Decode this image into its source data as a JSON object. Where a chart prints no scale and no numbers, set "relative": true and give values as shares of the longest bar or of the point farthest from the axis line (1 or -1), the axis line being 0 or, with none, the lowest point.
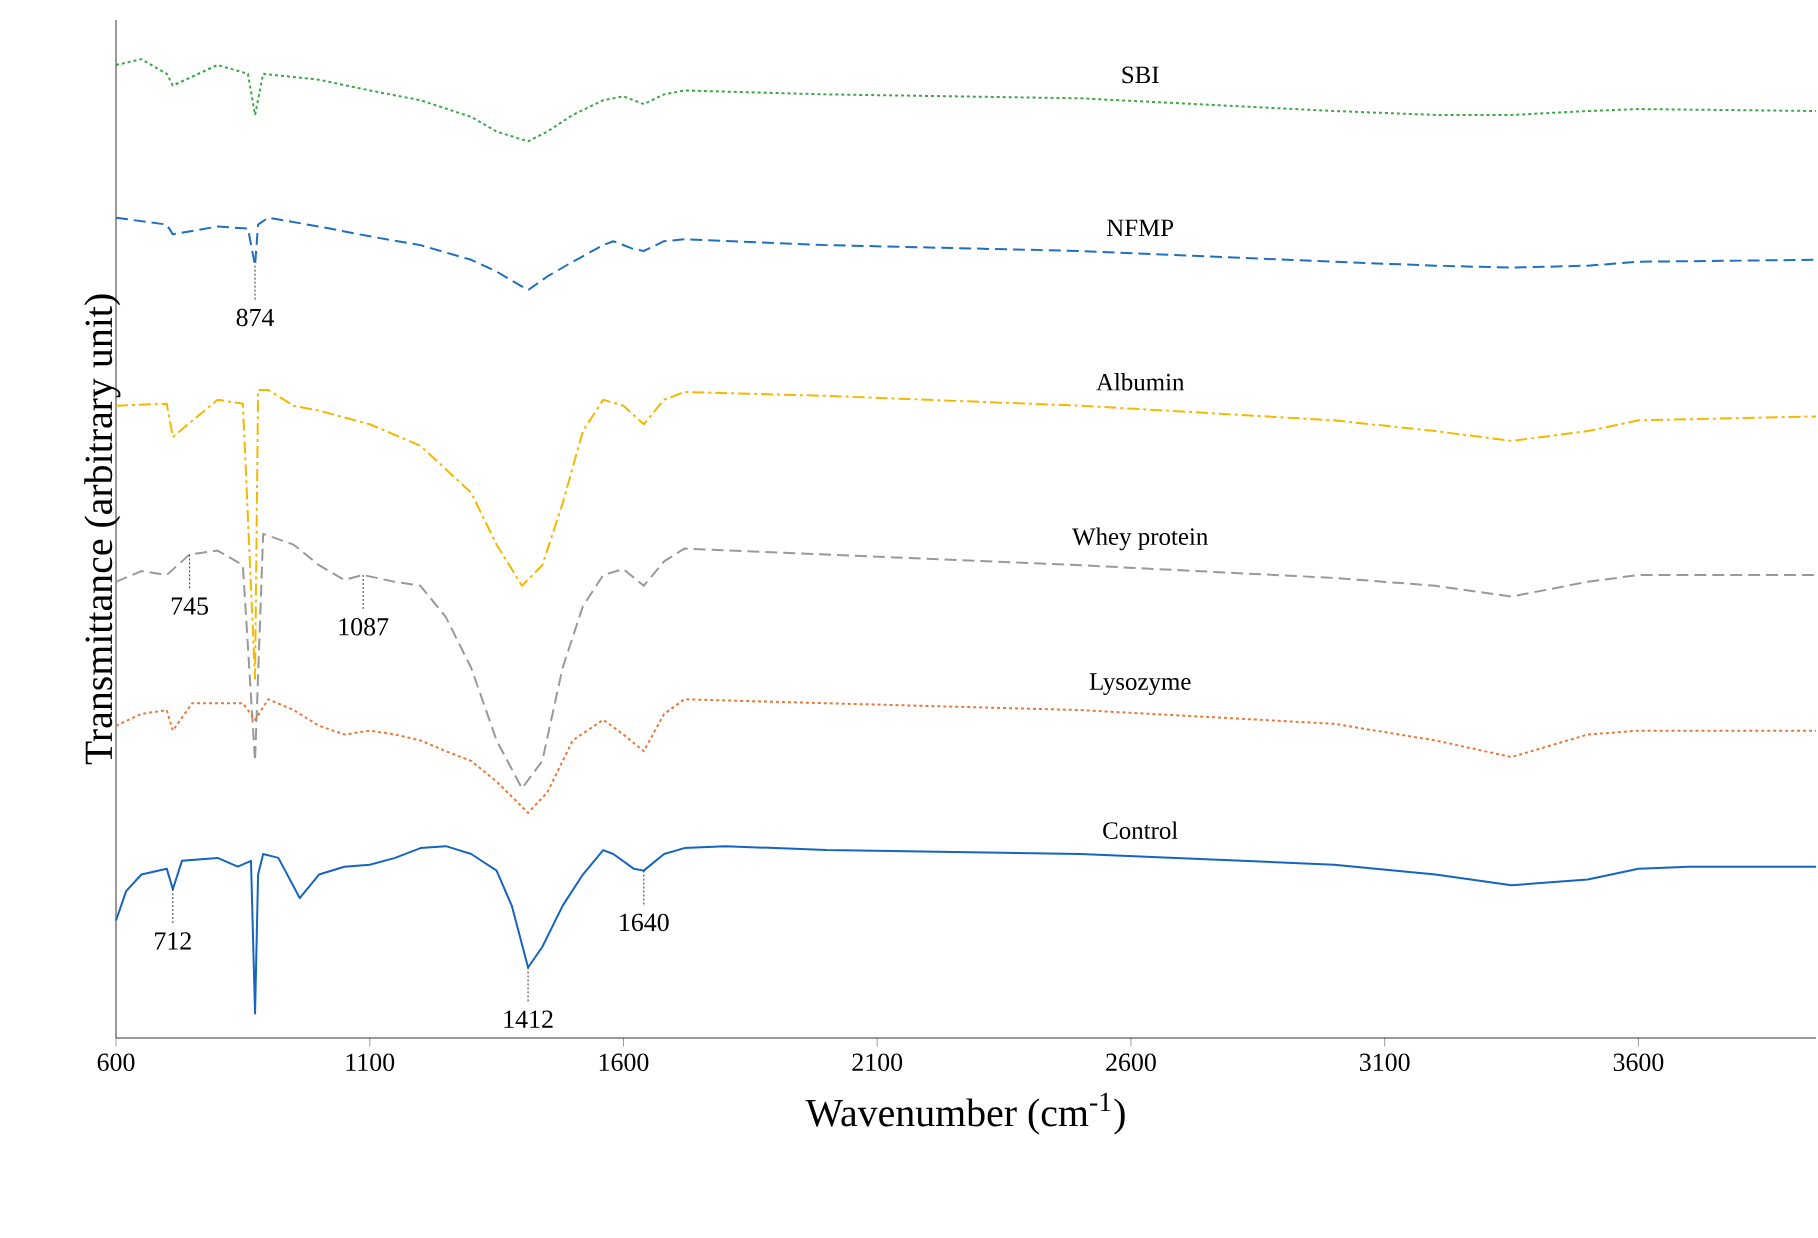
{
  "chart_data": {
    "type": "line",
    "xlabel": "Wavenumber (cm$^{-1}$)",
    "ylabel": "Transmittance (arbitrary unit)",
    "relative": true,
    "xlim": [
      600,
      3950
    ],
    "xticks": [
      600,
      1100,
      1600,
      2100,
      2600,
      3100,
      3600
    ],
    "series": [
      {
        "name": "SBI",
        "color": "#3aa845",
        "line_style": "dotted",
        "x": [
          600,
          650,
          700,
          712,
          800,
          860,
          874,
          890,
          1000,
          1100,
          1200,
          1300,
          1350,
          1412,
          1450,
          1500,
          1560,
          1600,
          1640,
          1680,
          1720,
          2000,
          2500,
          3000,
          3200,
          3350,
          3500,
          3600,
          3950
        ],
        "values": [
          0.994,
          1,
          0.985,
          0.973,
          0.994,
          0.985,
          0.943,
          0.985,
          0.979,
          0.968,
          0.958,
          0.941,
          0.926,
          0.916,
          0.926,
          0.943,
          0.958,
          0.962,
          0.954,
          0.964,
          0.968,
          0.964,
          0.96,
          0.947,
          0.943,
          0.943,
          0.947,
          0.949,
          0.947
        ]
      },
      {
        "name": "NFMP",
        "color": "#1f6fbf",
        "line_style": "dashed",
        "x": [
          600,
          700,
          712,
          800,
          860,
          874,
          880,
          900,
          1000,
          1100,
          1200,
          1300,
          1350,
          1412,
          1450,
          1500,
          1560,
          1580,
          1620,
          1640,
          1680,
          1720,
          2000,
          2500,
          3000,
          3200,
          3350,
          3500,
          3600,
          3950
        ],
        "values": [
          0.838,
          0.831,
          0.821,
          0.829,
          0.827,
          0.789,
          0.831,
          0.838,
          0.829,
          0.819,
          0.81,
          0.795,
          0.783,
          0.764,
          0.778,
          0.793,
          0.81,
          0.814,
          0.806,
          0.804,
          0.814,
          0.816,
          0.81,
          0.804,
          0.793,
          0.789,
          0.787,
          0.789,
          0.793,
          0.795
        ]
      },
      {
        "name": "Albumin",
        "color": "#f5b800",
        "line_style": "dashdot",
        "x": [
          600,
          700,
          712,
          800,
          850,
          874,
          880,
          900,
          950,
          1000,
          1100,
          1200,
          1300,
          1350,
          1400,
          1440,
          1480,
          1520,
          1560,
          1600,
          1640,
          1680,
          1720,
          2000,
          2500,
          3000,
          3200,
          3350,
          3500,
          3600,
          3950
        ],
        "values": [
          0.646,
          0.648,
          0.614,
          0.652,
          0.648,
          0.367,
          0.662,
          0.662,
          0.646,
          0.641,
          0.627,
          0.605,
          0.557,
          0.504,
          0.462,
          0.483,
          0.546,
          0.62,
          0.652,
          0.646,
          0.627,
          0.652,
          0.66,
          0.656,
          0.646,
          0.631,
          0.62,
          0.61,
          0.62,
          0.631,
          0.635
        ]
      },
      {
        "name": "Whey protein",
        "color": "#999999",
        "line_style": "dashed",
        "x": [
          600,
          650,
          700,
          745,
          800,
          850,
          874,
          890,
          950,
          1000,
          1050,
          1087,
          1150,
          1200,
          1250,
          1300,
          1350,
          1400,
          1440,
          1480,
          1520,
          1560,
          1600,
          1640,
          1680,
          1720,
          2000,
          2500,
          3000,
          3200,
          3350,
          3500,
          3600,
          3950
        ],
        "values": [
          0.466,
          0.477,
          0.473,
          0.494,
          0.498,
          0.483,
          0.283,
          0.515,
          0.504,
          0.483,
          0.468,
          0.473,
          0.466,
          0.462,
          0.43,
          0.378,
          0.304,
          0.255,
          0.283,
          0.378,
          0.441,
          0.473,
          0.479,
          0.462,
          0.487,
          0.5,
          0.494,
          0.483,
          0.47,
          0.462,
          0.451,
          0.466,
          0.473,
          0.473
        ]
      },
      {
        "name": "Lysozyme",
        "color": "#e8783a",
        "line_style": "dotted",
        "x": [
          600,
          650,
          700,
          712,
          750,
          850,
          874,
          900,
          950,
          1000,
          1050,
          1100,
          1150,
          1200,
          1250,
          1300,
          1350,
          1412,
          1450,
          1500,
          1560,
          1600,
          1640,
          1680,
          1720,
          2000,
          2500,
          3000,
          3200,
          3350,
          3500,
          3600,
          3950
        ],
        "values": [
          0.319,
          0.331,
          0.335,
          0.314,
          0.342,
          0.342,
          0.325,
          0.346,
          0.335,
          0.319,
          0.31,
          0.314,
          0.31,
          0.304,
          0.293,
          0.283,
          0.262,
          0.23,
          0.251,
          0.304,
          0.325,
          0.31,
          0.293,
          0.331,
          0.346,
          0.342,
          0.335,
          0.321,
          0.304,
          0.287,
          0.31,
          0.314,
          0.314
        ]
      },
      {
        "name": "Control",
        "color": "#1565c0",
        "line_style": "solid",
        "x": [
          600,
          620,
          650,
          700,
          712,
          730,
          800,
          840,
          866,
          874,
          880,
          890,
          920,
          962,
          1000,
          1050,
          1100,
          1150,
          1200,
          1250,
          1300,
          1350,
          1380,
          1412,
          1440,
          1480,
          1520,
          1560,
          1580,
          1620,
          1640,
          1680,
          1720,
          1800,
          2000,
          2500,
          3000,
          3200,
          3350,
          3500,
          3600,
          3700,
          3950
        ],
        "values": [
          0.12,
          0.15,
          0.167,
          0.173,
          0.152,
          0.181,
          0.184,
          0.175,
          0.181,
          0.025,
          0.167,
          0.188,
          0.184,
          0.143,
          0.167,
          0.175,
          0.177,
          0.184,
          0.194,
          0.196,
          0.188,
          0.171,
          0.135,
          0.072,
          0.093,
          0.135,
          0.167,
          0.192,
          0.188,
          0.173,
          0.171,
          0.188,
          0.194,
          0.196,
          0.192,
          0.188,
          0.177,
          0.167,
          0.156,
          0.162,
          0.173,
          0.175,
          0.175
        ]
      }
    ],
    "annotations": [
      {
        "text": "874",
        "x": 874,
        "y": 0.789
      },
      {
        "text": "745",
        "x": 745,
        "y": 0.494
      },
      {
        "text": "1087",
        "x": 1087,
        "y": 0.473
      },
      {
        "text": "712",
        "x": 712,
        "y": 0.152
      },
      {
        "text": "1412",
        "x": 1412,
        "y": 0.072
      },
      {
        "text": "1640",
        "x": 1640,
        "y": 0.171
      }
    ]
  }
}
